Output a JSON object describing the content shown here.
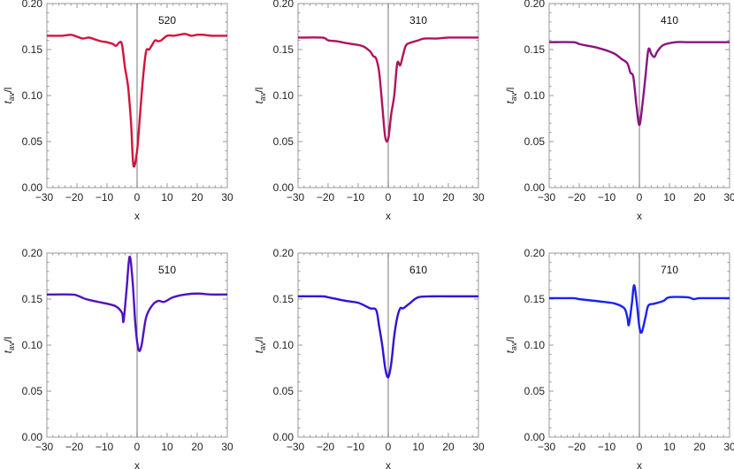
{
  "chart_data": [
    {
      "type": "line",
      "annotation": "520",
      "color": "#d3123c",
      "xlabel": "x",
      "ylabel": "t_av/l",
      "xlim": [
        -30,
        30
      ],
      "ylim": [
        0,
        0.2
      ],
      "xticks": [
        -30,
        -20,
        -10,
        0,
        10,
        20,
        30
      ],
      "yticks": [
        "0.00",
        "0.05",
        "0.10",
        "0.15",
        "0.20"
      ],
      "x": [
        -30,
        -25,
        -22,
        -20,
        -18,
        -16,
        -14,
        -12,
        -10,
        -8,
        -7,
        -5.8,
        -5,
        -4,
        -3,
        -2,
        -1.2,
        0,
        1,
        2,
        3,
        4,
        5,
        6,
        7,
        8,
        10,
        12,
        14,
        16,
        18,
        20,
        22,
        25,
        30
      ],
      "y": [
        0.165,
        0.165,
        0.166,
        0.164,
        0.162,
        0.163,
        0.161,
        0.159,
        0.158,
        0.156,
        0.154,
        0.158,
        0.155,
        0.13,
        0.11,
        0.07,
        0.024,
        0.04,
        0.08,
        0.12,
        0.148,
        0.15,
        0.155,
        0.16,
        0.159,
        0.16,
        0.165,
        0.165,
        0.166,
        0.167,
        0.165,
        0.166,
        0.166,
        0.165,
        0.165
      ]
    },
    {
      "type": "line",
      "annotation": "310",
      "color": "#b0125c",
      "xlabel": "x",
      "ylabel": "t_av/l",
      "xlim": [
        -30,
        30
      ],
      "ylim": [
        0,
        0.2
      ],
      "xticks": [
        -30,
        -20,
        -10,
        0,
        10,
        20,
        30
      ],
      "yticks": [
        "0.00",
        "0.05",
        "0.10",
        "0.15",
        "0.20"
      ],
      "x": [
        -30,
        -22,
        -20,
        -17,
        -14,
        -10,
        -8,
        -6,
        -5,
        -4,
        -3,
        -2,
        -1,
        0,
        1,
        2,
        3,
        4,
        5,
        6,
        8,
        10,
        12,
        16,
        20,
        25,
        30
      ],
      "y": [
        0.163,
        0.163,
        0.16,
        0.159,
        0.157,
        0.155,
        0.153,
        0.148,
        0.143,
        0.14,
        0.125,
        0.09,
        0.055,
        0.053,
        0.08,
        0.1,
        0.135,
        0.133,
        0.145,
        0.155,
        0.158,
        0.16,
        0.162,
        0.162,
        0.163,
        0.163,
        0.163
      ]
    },
    {
      "type": "line",
      "annotation": "410",
      "color": "#8a1282",
      "xlabel": "x",
      "ylabel": "t_av/l",
      "xlim": [
        -30,
        30
      ],
      "ylim": [
        0,
        0.2
      ],
      "xticks": [
        -30,
        -20,
        -10,
        0,
        10,
        20,
        30
      ],
      "yticks": [
        "0.00",
        "0.05",
        "0.10",
        "0.15",
        "0.20"
      ],
      "x": [
        -30,
        -22,
        -20,
        -17,
        -14,
        -10,
        -8,
        -6,
        -4,
        -3,
        -2,
        -1,
        0,
        1,
        2,
        3,
        4,
        5,
        6,
        8,
        12,
        16,
        20,
        25,
        30
      ],
      "y": [
        0.158,
        0.158,
        0.156,
        0.154,
        0.152,
        0.148,
        0.145,
        0.14,
        0.135,
        0.125,
        0.12,
        0.09,
        0.068,
        0.09,
        0.12,
        0.15,
        0.145,
        0.142,
        0.148,
        0.155,
        0.158,
        0.158,
        0.158,
        0.158,
        0.158
      ]
    },
    {
      "type": "line",
      "annotation": "510",
      "color": "#5012c0",
      "xlabel": "x",
      "ylabel": "t_av/l",
      "xlim": [
        -30,
        30
      ],
      "ylim": [
        0,
        0.2
      ],
      "xticks": [
        -30,
        -20,
        -10,
        0,
        10,
        20,
        30
      ],
      "yticks": [
        "0.00",
        "0.05",
        "0.10",
        "0.15",
        "0.20"
      ],
      "x": [
        -30,
        -22,
        -20,
        -17,
        -13,
        -10,
        -7,
        -5,
        -4.5,
        -3.5,
        -2.5,
        -1.5,
        -0.5,
        0.5,
        1.5,
        3,
        5,
        7,
        9,
        12,
        16,
        20,
        25,
        30
      ],
      "y": [
        0.155,
        0.155,
        0.154,
        0.15,
        0.147,
        0.145,
        0.142,
        0.135,
        0.126,
        0.16,
        0.196,
        0.17,
        0.12,
        0.095,
        0.1,
        0.13,
        0.143,
        0.148,
        0.147,
        0.152,
        0.155,
        0.156,
        0.155,
        0.155
      ]
    },
    {
      "type": "line",
      "annotation": "610",
      "color": "#3012d8",
      "xlabel": "x",
      "ylabel": "t_av/l",
      "xlim": [
        -30,
        30
      ],
      "ylim": [
        0,
        0.2
      ],
      "xticks": [
        -30,
        -20,
        -10,
        0,
        10,
        20,
        30
      ],
      "yticks": [
        "0.00",
        "0.05",
        "0.10",
        "0.15",
        "0.20"
      ],
      "x": [
        -30,
        -22,
        -20,
        -14,
        -10,
        -6,
        -4,
        -3,
        -2,
        -1,
        0,
        1,
        2,
        3,
        4,
        5,
        7,
        10,
        15,
        20,
        25,
        30
      ],
      "y": [
        0.153,
        0.153,
        0.152,
        0.148,
        0.146,
        0.14,
        0.138,
        0.12,
        0.1,
        0.075,
        0.065,
        0.08,
        0.11,
        0.13,
        0.14,
        0.14,
        0.145,
        0.152,
        0.153,
        0.153,
        0.153,
        0.153
      ]
    },
    {
      "type": "line",
      "annotation": "710",
      "color": "#1a22f0",
      "xlabel": "x",
      "ylabel": "t_av/l",
      "xlim": [
        -30,
        30
      ],
      "ylim": [
        0,
        0.2
      ],
      "xticks": [
        -30,
        -20,
        -10,
        0,
        10,
        20,
        30
      ],
      "yticks": [
        "0.00",
        "0.05",
        "0.10",
        "0.15",
        "0.20"
      ],
      "x": [
        -30,
        -22,
        -20,
        -12,
        -8,
        -5,
        -4,
        -3.5,
        -2.5,
        -1.8,
        -1,
        0,
        0.8,
        2,
        3,
        5,
        8,
        10,
        16,
        18,
        20,
        25,
        30
      ],
      "y": [
        0.151,
        0.151,
        0.15,
        0.147,
        0.145,
        0.14,
        0.13,
        0.122,
        0.145,
        0.165,
        0.15,
        0.12,
        0.114,
        0.13,
        0.143,
        0.145,
        0.148,
        0.152,
        0.152,
        0.15,
        0.151,
        0.151,
        0.151
      ]
    }
  ]
}
